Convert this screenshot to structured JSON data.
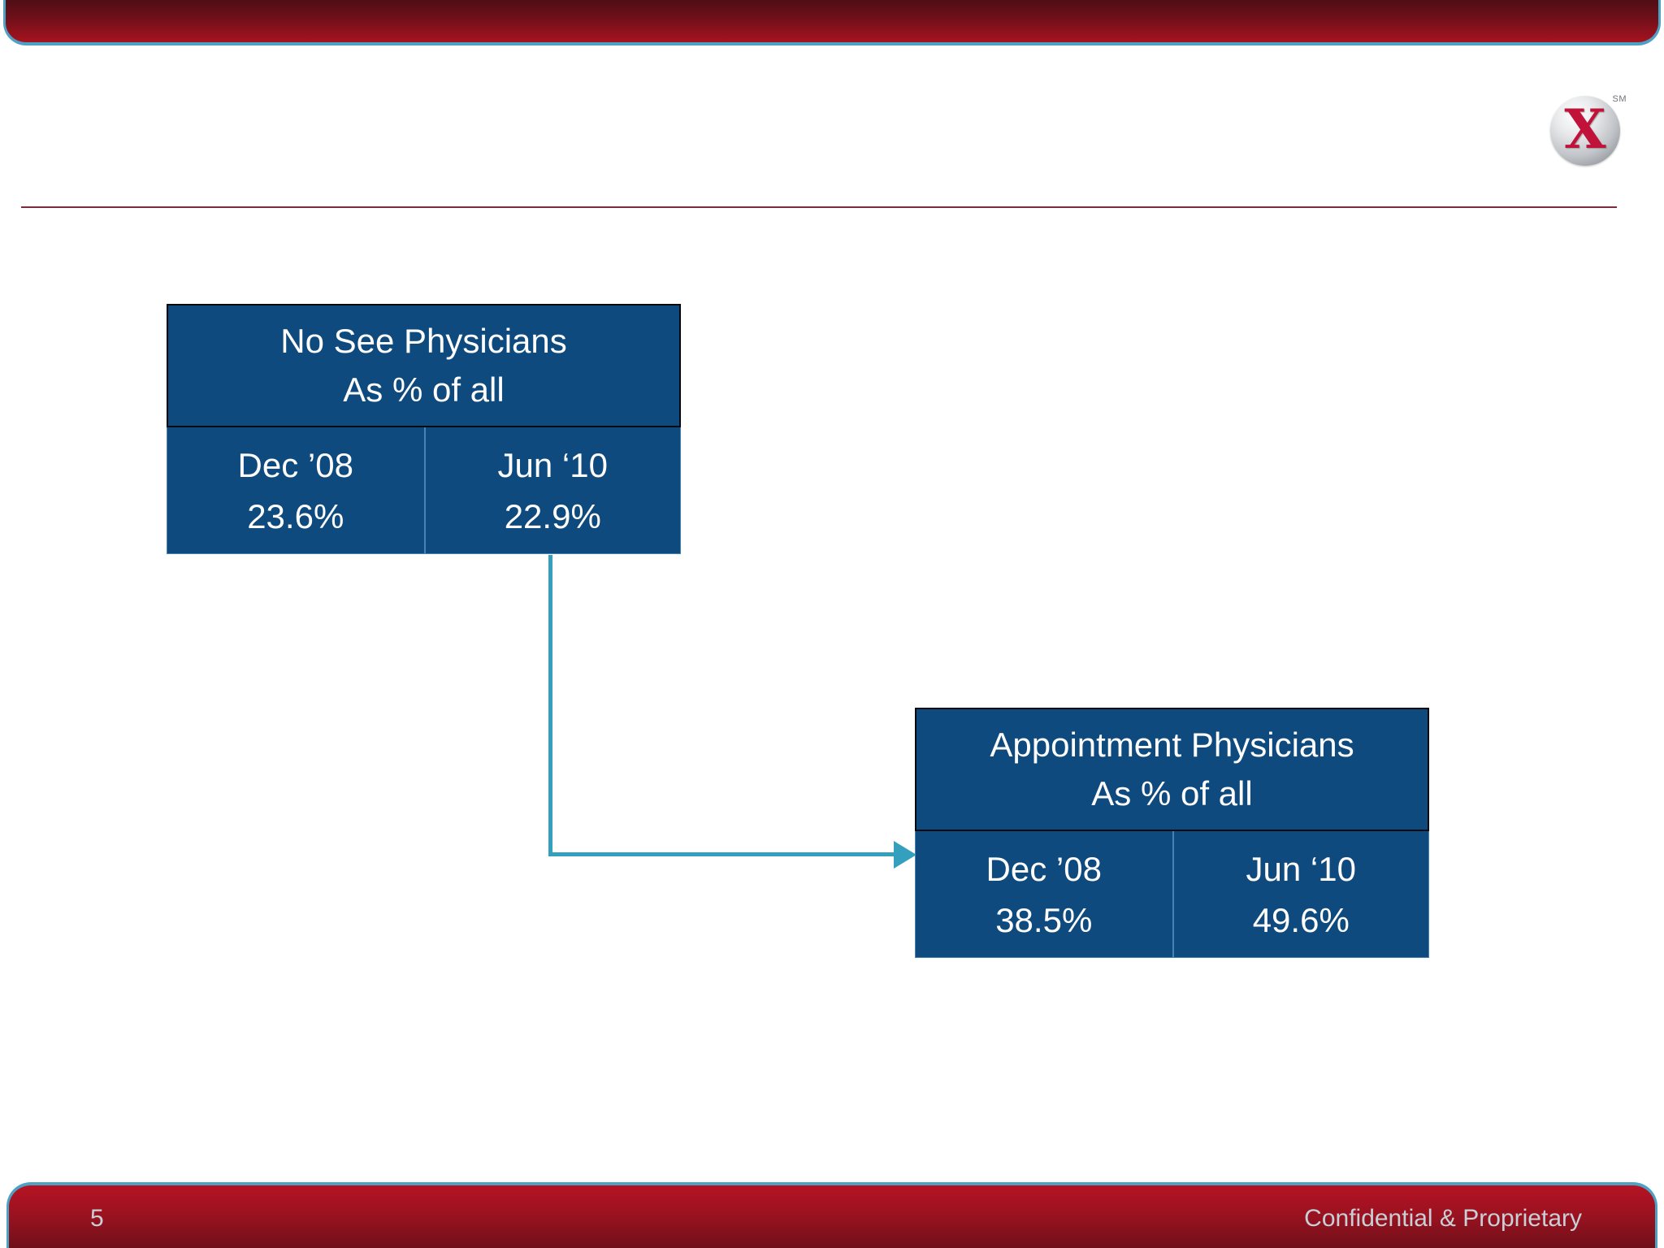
{
  "slide": {
    "page_number": "5",
    "footer_text": "Confidential & Proprietary"
  },
  "logo": {
    "letter": "X",
    "trademark": "SM"
  },
  "boxes": [
    {
      "title_line1": "No See Physicians",
      "title_line2": "As % of all",
      "cells": [
        {
          "label": "Dec ’08",
          "value": "23.6%"
        },
        {
          "label": "Jun ‘10",
          "value": "22.9%"
        }
      ]
    },
    {
      "title_line1": "Appointment Physicians",
      "title_line2": "As % of all",
      "cells": [
        {
          "label": "Dec ’08",
          "value": "38.5%"
        },
        {
          "label": "Jun ‘10",
          "value": "49.6%"
        }
      ]
    }
  ],
  "connector": {
    "from": "No See Physicians box",
    "to": "Appointment Physicians box",
    "shape": "elbow-down-right-arrow"
  },
  "colors": {
    "box_fill_blue": "#0E4A7D",
    "box_header_border": "#060A0E",
    "box_cell_border": "#4583B3",
    "connector_teal": "#35A0BD",
    "banner_border_teal": "#4DA2C4",
    "banner_red_dark": "#4F0E16",
    "banner_red_bright": "#B51323",
    "title_divider_maroon": "#7E2A3B",
    "logo_x_red": "#C1133A",
    "footer_text_gray": "#C9CFD6",
    "box_text": "#FFFFFF",
    "background": "#FFFFFF"
  }
}
